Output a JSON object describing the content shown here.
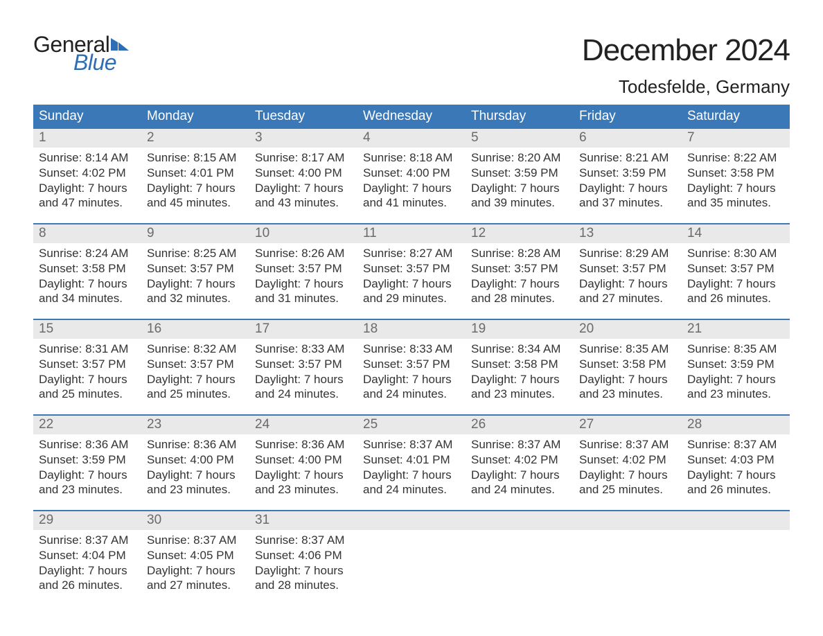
{
  "logo": {
    "word1": "General",
    "word2": "Blue"
  },
  "colors": {
    "header_bg": "#3b78b8",
    "header_text": "#ffffff",
    "daynum_bg": "#e9e9e9",
    "daynum_text": "#6a6a6a",
    "body_text": "#333333",
    "logo_blue": "#2f6eb5",
    "week_border": "#3b78b8"
  },
  "title": "December 2024",
  "location": "Todesfelde, Germany",
  "weekdays": [
    "Sunday",
    "Monday",
    "Tuesday",
    "Wednesday",
    "Thursday",
    "Friday",
    "Saturday"
  ],
  "weeks": [
    [
      {
        "n": "1",
        "sunrise": "Sunrise: 8:14 AM",
        "sunset": "Sunset: 4:02 PM",
        "d1": "Daylight: 7 hours",
        "d2": "and 47 minutes."
      },
      {
        "n": "2",
        "sunrise": "Sunrise: 8:15 AM",
        "sunset": "Sunset: 4:01 PM",
        "d1": "Daylight: 7 hours",
        "d2": "and 45 minutes."
      },
      {
        "n": "3",
        "sunrise": "Sunrise: 8:17 AM",
        "sunset": "Sunset: 4:00 PM",
        "d1": "Daylight: 7 hours",
        "d2": "and 43 minutes."
      },
      {
        "n": "4",
        "sunrise": "Sunrise: 8:18 AM",
        "sunset": "Sunset: 4:00 PM",
        "d1": "Daylight: 7 hours",
        "d2": "and 41 minutes."
      },
      {
        "n": "5",
        "sunrise": "Sunrise: 8:20 AM",
        "sunset": "Sunset: 3:59 PM",
        "d1": "Daylight: 7 hours",
        "d2": "and 39 minutes."
      },
      {
        "n": "6",
        "sunrise": "Sunrise: 8:21 AM",
        "sunset": "Sunset: 3:59 PM",
        "d1": "Daylight: 7 hours",
        "d2": "and 37 minutes."
      },
      {
        "n": "7",
        "sunrise": "Sunrise: 8:22 AM",
        "sunset": "Sunset: 3:58 PM",
        "d1": "Daylight: 7 hours",
        "d2": "and 35 minutes."
      }
    ],
    [
      {
        "n": "8",
        "sunrise": "Sunrise: 8:24 AM",
        "sunset": "Sunset: 3:58 PM",
        "d1": "Daylight: 7 hours",
        "d2": "and 34 minutes."
      },
      {
        "n": "9",
        "sunrise": "Sunrise: 8:25 AM",
        "sunset": "Sunset: 3:57 PM",
        "d1": "Daylight: 7 hours",
        "d2": "and 32 minutes."
      },
      {
        "n": "10",
        "sunrise": "Sunrise: 8:26 AM",
        "sunset": "Sunset: 3:57 PM",
        "d1": "Daylight: 7 hours",
        "d2": "and 31 minutes."
      },
      {
        "n": "11",
        "sunrise": "Sunrise: 8:27 AM",
        "sunset": "Sunset: 3:57 PM",
        "d1": "Daylight: 7 hours",
        "d2": "and 29 minutes."
      },
      {
        "n": "12",
        "sunrise": "Sunrise: 8:28 AM",
        "sunset": "Sunset: 3:57 PM",
        "d1": "Daylight: 7 hours",
        "d2": "and 28 minutes."
      },
      {
        "n": "13",
        "sunrise": "Sunrise: 8:29 AM",
        "sunset": "Sunset: 3:57 PM",
        "d1": "Daylight: 7 hours",
        "d2": "and 27 minutes."
      },
      {
        "n": "14",
        "sunrise": "Sunrise: 8:30 AM",
        "sunset": "Sunset: 3:57 PM",
        "d1": "Daylight: 7 hours",
        "d2": "and 26 minutes."
      }
    ],
    [
      {
        "n": "15",
        "sunrise": "Sunrise: 8:31 AM",
        "sunset": "Sunset: 3:57 PM",
        "d1": "Daylight: 7 hours",
        "d2": "and 25 minutes."
      },
      {
        "n": "16",
        "sunrise": "Sunrise: 8:32 AM",
        "sunset": "Sunset: 3:57 PM",
        "d1": "Daylight: 7 hours",
        "d2": "and 25 minutes."
      },
      {
        "n": "17",
        "sunrise": "Sunrise: 8:33 AM",
        "sunset": "Sunset: 3:57 PM",
        "d1": "Daylight: 7 hours",
        "d2": "and 24 minutes."
      },
      {
        "n": "18",
        "sunrise": "Sunrise: 8:33 AM",
        "sunset": "Sunset: 3:57 PM",
        "d1": "Daylight: 7 hours",
        "d2": "and 24 minutes."
      },
      {
        "n": "19",
        "sunrise": "Sunrise: 8:34 AM",
        "sunset": "Sunset: 3:58 PM",
        "d1": "Daylight: 7 hours",
        "d2": "and 23 minutes."
      },
      {
        "n": "20",
        "sunrise": "Sunrise: 8:35 AM",
        "sunset": "Sunset: 3:58 PM",
        "d1": "Daylight: 7 hours",
        "d2": "and 23 minutes."
      },
      {
        "n": "21",
        "sunrise": "Sunrise: 8:35 AM",
        "sunset": "Sunset: 3:59 PM",
        "d1": "Daylight: 7 hours",
        "d2": "and 23 minutes."
      }
    ],
    [
      {
        "n": "22",
        "sunrise": "Sunrise: 8:36 AM",
        "sunset": "Sunset: 3:59 PM",
        "d1": "Daylight: 7 hours",
        "d2": "and 23 minutes."
      },
      {
        "n": "23",
        "sunrise": "Sunrise: 8:36 AM",
        "sunset": "Sunset: 4:00 PM",
        "d1": "Daylight: 7 hours",
        "d2": "and 23 minutes."
      },
      {
        "n": "24",
        "sunrise": "Sunrise: 8:36 AM",
        "sunset": "Sunset: 4:00 PM",
        "d1": "Daylight: 7 hours",
        "d2": "and 23 minutes."
      },
      {
        "n": "25",
        "sunrise": "Sunrise: 8:37 AM",
        "sunset": "Sunset: 4:01 PM",
        "d1": "Daylight: 7 hours",
        "d2": "and 24 minutes."
      },
      {
        "n": "26",
        "sunrise": "Sunrise: 8:37 AM",
        "sunset": "Sunset: 4:02 PM",
        "d1": "Daylight: 7 hours",
        "d2": "and 24 minutes."
      },
      {
        "n": "27",
        "sunrise": "Sunrise: 8:37 AM",
        "sunset": "Sunset: 4:02 PM",
        "d1": "Daylight: 7 hours",
        "d2": "and 25 minutes."
      },
      {
        "n": "28",
        "sunrise": "Sunrise: 8:37 AM",
        "sunset": "Sunset: 4:03 PM",
        "d1": "Daylight: 7 hours",
        "d2": "and 26 minutes."
      }
    ],
    [
      {
        "n": "29",
        "sunrise": "Sunrise: 8:37 AM",
        "sunset": "Sunset: 4:04 PM",
        "d1": "Daylight: 7 hours",
        "d2": "and 26 minutes."
      },
      {
        "n": "30",
        "sunrise": "Sunrise: 8:37 AM",
        "sunset": "Sunset: 4:05 PM",
        "d1": "Daylight: 7 hours",
        "d2": "and 27 minutes."
      },
      {
        "n": "31",
        "sunrise": "Sunrise: 8:37 AM",
        "sunset": "Sunset: 4:06 PM",
        "d1": "Daylight: 7 hours",
        "d2": "and 28 minutes."
      },
      {
        "empty": true
      },
      {
        "empty": true
      },
      {
        "empty": true
      },
      {
        "empty": true
      }
    ]
  ]
}
